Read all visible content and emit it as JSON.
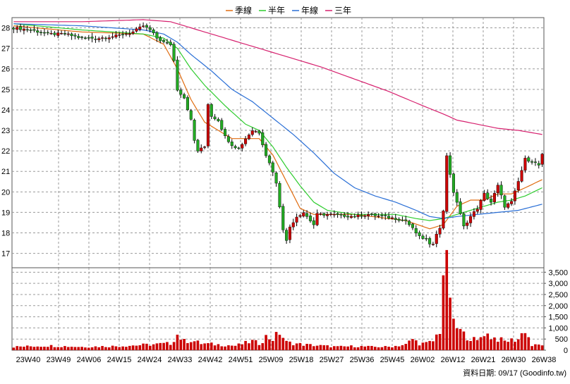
{
  "legend": [
    {
      "label": "季線",
      "color": "#e06c10"
    },
    {
      "label": "半年",
      "color": "#2ecc2e"
    },
    {
      "label": "年線",
      "color": "#2a6fd6"
    },
    {
      "label": "三年",
      "color": "#d6206e"
    }
  ],
  "footer_text": "資料日期: 09/17  (Goodinfo.tw)",
  "colors": {
    "up": "#cc0000",
    "down": "#22aa22",
    "grid": "#9a9a9a",
    "volume": "#cc0000"
  },
  "chart_data": [
    {
      "type": "candlestick",
      "x_ticks": [
        "23W40",
        "23W49",
        "24W06",
        "24W15",
        "24W24",
        "24W33",
        "24W42",
        "24W51",
        "25W09",
        "25W18",
        "25W27",
        "25W36",
        "25W45",
        "26W02",
        "26W12",
        "26W21",
        "26W30",
        "26W38"
      ],
      "y_ticks": [
        17,
        18,
        19,
        20,
        21,
        22,
        23,
        24,
        25,
        26,
        27,
        28
      ],
      "ylim": [
        16.3,
        28.5
      ],
      "weeks": 156,
      "close_anchors": [
        [
          0,
          28.0
        ],
        [
          5,
          27.9
        ],
        [
          10,
          27.7
        ],
        [
          15,
          27.7
        ],
        [
          20,
          27.5
        ],
        [
          25,
          27.5
        ],
        [
          30,
          27.6
        ],
        [
          35,
          27.8
        ],
        [
          38,
          28.1
        ],
        [
          40,
          27.9
        ],
        [
          42,
          27.5
        ],
        [
          44,
          27.3
        ],
        [
          46,
          27.2
        ],
        [
          47,
          26.4
        ],
        [
          48,
          25.0
        ],
        [
          50,
          24.6
        ],
        [
          52,
          23.5
        ],
        [
          53,
          22.5
        ],
        [
          54,
          22.0
        ],
        [
          56,
          22.2
        ],
        [
          57,
          24.3
        ],
        [
          58,
          23.7
        ],
        [
          60,
          23.5
        ],
        [
          62,
          22.7
        ],
        [
          64,
          22.3
        ],
        [
          66,
          22.1
        ],
        [
          68,
          22.6
        ],
        [
          70,
          23.0
        ],
        [
          72,
          22.9
        ],
        [
          74,
          21.8
        ],
        [
          76,
          21.0
        ],
        [
          77,
          20.4
        ],
        [
          78,
          19.3
        ],
        [
          79,
          18.2
        ],
        [
          80,
          17.6
        ],
        [
          81,
          18.3
        ],
        [
          83,
          18.8
        ],
        [
          85,
          19.0
        ],
        [
          87,
          18.6
        ],
        [
          88,
          18.4
        ],
        [
          89,
          18.9
        ],
        [
          92,
          18.9
        ],
        [
          96,
          18.85
        ],
        [
          100,
          18.8
        ],
        [
          104,
          18.9
        ],
        [
          108,
          18.8
        ],
        [
          112,
          18.7
        ],
        [
          115,
          18.6
        ],
        [
          117,
          18.2
        ],
        [
          119,
          17.8
        ],
        [
          121,
          17.7
        ],
        [
          122,
          17.4
        ],
        [
          123,
          17.5
        ],
        [
          124,
          18.0
        ],
        [
          125,
          18.2
        ],
        [
          126,
          19.1
        ],
        [
          127,
          21.8
        ],
        [
          128,
          20.8
        ],
        [
          129,
          20.0
        ],
        [
          130,
          19.5
        ],
        [
          132,
          18.3
        ],
        [
          134,
          18.8
        ],
        [
          136,
          19.2
        ],
        [
          138,
          19.9
        ],
        [
          140,
          19.5
        ],
        [
          142,
          20.3
        ],
        [
          144,
          19.3
        ],
        [
          146,
          19.5
        ],
        [
          148,
          20.5
        ],
        [
          150,
          21.6
        ],
        [
          152,
          21.5
        ],
        [
          154,
          21.3
        ],
        [
          155,
          21.8
        ]
      ],
      "moving_averages": [
        {
          "name": "季線",
          "anchors": [
            [
              0,
              28.1
            ],
            [
              20,
              27.8
            ],
            [
              38,
              27.7
            ],
            [
              44,
              27.2
            ],
            [
              48,
              26.0
            ],
            [
              52,
              24.5
            ],
            [
              56,
              23.4
            ],
            [
              60,
              23.0
            ],
            [
              64,
              22.6
            ],
            [
              68,
              22.6
            ],
            [
              72,
              22.6
            ],
            [
              76,
              21.8
            ],
            [
              80,
              20.5
            ],
            [
              84,
              19.2
            ],
            [
              88,
              18.9
            ],
            [
              100,
              18.9
            ],
            [
              115,
              18.6
            ],
            [
              122,
              18.2
            ],
            [
              126,
              18.4
            ],
            [
              130,
              19.3
            ],
            [
              134,
              19.6
            ],
            [
              138,
              19.6
            ],
            [
              142,
              19.9
            ],
            [
              146,
              19.9
            ],
            [
              150,
              20.2
            ],
            [
              155,
              20.6
            ]
          ]
        },
        {
          "name": "半年",
          "anchors": [
            [
              0,
              28.2
            ],
            [
              20,
              27.9
            ],
            [
              38,
              27.7
            ],
            [
              44,
              27.5
            ],
            [
              48,
              27.0
            ],
            [
              52,
              26.0
            ],
            [
              56,
              25.2
            ],
            [
              62,
              24.2
            ],
            [
              68,
              23.3
            ],
            [
              72,
              23.0
            ],
            [
              76,
              22.2
            ],
            [
              80,
              21.2
            ],
            [
              84,
              20.3
            ],
            [
              88,
              19.5
            ],
            [
              92,
              19.1
            ],
            [
              100,
              18.9
            ],
            [
              112,
              18.9
            ],
            [
              118,
              18.7
            ],
            [
              122,
              18.6
            ],
            [
              126,
              18.7
            ],
            [
              130,
              18.9
            ],
            [
              134,
              19.1
            ],
            [
              138,
              19.3
            ],
            [
              142,
              19.5
            ],
            [
              146,
              19.6
            ],
            [
              150,
              19.8
            ],
            [
              155,
              20.2
            ]
          ]
        },
        {
          "name": "年線",
          "anchors": [
            [
              0,
              28.2
            ],
            [
              20,
              28.1
            ],
            [
              38,
              27.9
            ],
            [
              44,
              27.7
            ],
            [
              48,
              27.3
            ],
            [
              52,
              26.7
            ],
            [
              58,
              25.9
            ],
            [
              64,
              25.0
            ],
            [
              70,
              24.4
            ],
            [
              76,
              23.6
            ],
            [
              82,
              22.8
            ],
            [
              88,
              21.9
            ],
            [
              94,
              20.9
            ],
            [
              100,
              20.2
            ],
            [
              106,
              19.8
            ],
            [
              112,
              19.5
            ],
            [
              118,
              19.1
            ],
            [
              122,
              18.8
            ],
            [
              126,
              18.7
            ],
            [
              130,
              18.8
            ],
            [
              136,
              18.9
            ],
            [
              142,
              19.0
            ],
            [
              148,
              19.1
            ],
            [
              155,
              19.4
            ]
          ]
        },
        {
          "name": "三年",
          "anchors": [
            [
              0,
              28.3
            ],
            [
              20,
              28.3
            ],
            [
              38,
              28.4
            ],
            [
              46,
              28.3
            ],
            [
              52,
              28.0
            ],
            [
              60,
              27.6
            ],
            [
              70,
              27.1
            ],
            [
              80,
              26.6
            ],
            [
              90,
              26.1
            ],
            [
              100,
              25.5
            ],
            [
              110,
              24.9
            ],
            [
              120,
              24.2
            ],
            [
              126,
              23.8
            ],
            [
              130,
              23.5
            ],
            [
              136,
              23.3
            ],
            [
              142,
              23.1
            ],
            [
              148,
              23.0
            ],
            [
              155,
              22.8
            ]
          ]
        }
      ]
    },
    {
      "type": "bar",
      "name": "volume",
      "y_ticks": [
        "0",
        "500",
        "1,000",
        "1,500",
        "2,000",
        "2,500",
        "3,000",
        "3,500"
      ],
      "ylim": [
        0,
        3700
      ],
      "volume_anchors": [
        [
          0,
          150
        ],
        [
          10,
          200
        ],
        [
          20,
          150
        ],
        [
          30,
          180
        ],
        [
          40,
          250
        ],
        [
          46,
          300
        ],
        [
          48,
          700
        ],
        [
          50,
          400
        ],
        [
          52,
          450
        ],
        [
          55,
          300
        ],
        [
          60,
          250
        ],
        [
          65,
          200
        ],
        [
          70,
          400
        ],
        [
          72,
          300
        ],
        [
          74,
          600
        ],
        [
          76,
          500
        ],
        [
          78,
          800
        ],
        [
          80,
          350
        ],
        [
          85,
          250
        ],
        [
          90,
          200
        ],
        [
          95,
          150
        ],
        [
          100,
          180
        ],
        [
          105,
          150
        ],
        [
          110,
          150
        ],
        [
          115,
          250
        ],
        [
          117,
          500
        ],
        [
          119,
          300
        ],
        [
          121,
          300
        ],
        [
          123,
          400
        ],
        [
          125,
          900
        ],
        [
          126,
          3600
        ],
        [
          127,
          3500
        ],
        [
          128,
          2600
        ],
        [
          129,
          1100
        ],
        [
          130,
          1000
        ],
        [
          132,
          700
        ],
        [
          134,
          550
        ],
        [
          136,
          400
        ],
        [
          138,
          800
        ],
        [
          140,
          600
        ],
        [
          142,
          500
        ],
        [
          144,
          400
        ],
        [
          146,
          450
        ],
        [
          148,
          500
        ],
        [
          150,
          950
        ],
        [
          152,
          200
        ],
        [
          155,
          250
        ]
      ]
    }
  ]
}
